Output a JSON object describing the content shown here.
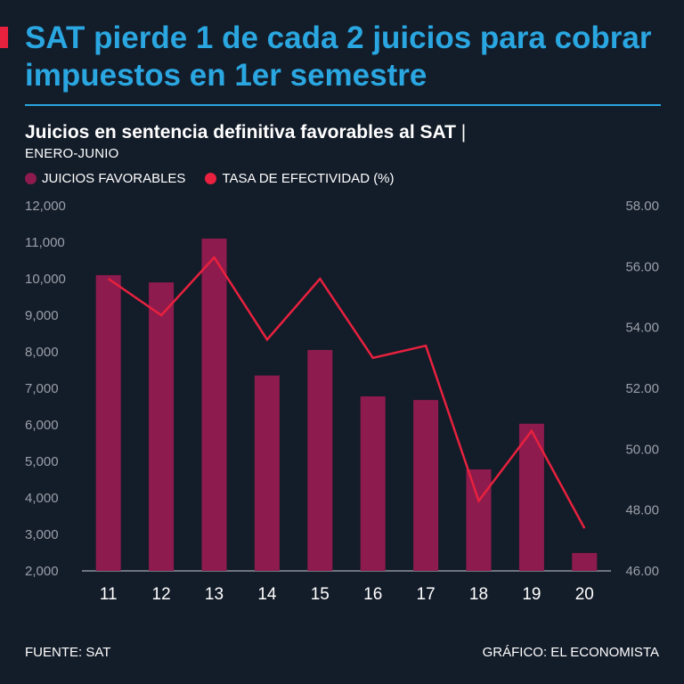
{
  "header": {
    "headline": "SAT pierde 1 de cada 2 juicios para cobrar impuestos en 1er semestre",
    "chart_title": "Juicios en sentencia definitiva favorables al SAT",
    "chart_title_separator": "|",
    "chart_subtitle": "ENERO-JUNIO"
  },
  "legend": {
    "bars_label": "JUICIOS FAVORABLES",
    "line_label": "TASA DE EFECTIVIDAD (%)"
  },
  "footer": {
    "source": "FUENTE: SAT",
    "credit": "GRÁFICO: EL ECONOMISTA"
  },
  "colors": {
    "background": "#131c29",
    "headline": "#2aa6e0",
    "accent": "#e8213e",
    "bars": "#8e1b4d",
    "line": "#e8213e",
    "tick": "#9aa0a8"
  },
  "chart_data": {
    "type": "bar",
    "categories": [
      "11",
      "12",
      "13",
      "14",
      "15",
      "16",
      "17",
      "18",
      "19",
      "20"
    ],
    "series": [
      {
        "name": "JUICIOS FAVORABLES",
        "type": "bar",
        "axis": "left",
        "values": [
          10100,
          9900,
          11100,
          7350,
          8050,
          6780,
          6680,
          4780,
          6030,
          2490
        ]
      },
      {
        "name": "TASA DE EFECTIVIDAD (%)",
        "type": "line",
        "axis": "right",
        "values": [
          55.6,
          54.4,
          56.3,
          53.6,
          55.6,
          53.0,
          53.4,
          48.3,
          50.6,
          47.4
        ]
      }
    ],
    "left_axis": {
      "min": 2000,
      "max": 12000,
      "ticks": [
        "2,000",
        "3,000",
        "4,000",
        "5,000",
        "6,000",
        "7,000",
        "8,000",
        "9,000",
        "10,000",
        "11,000",
        "12,000"
      ]
    },
    "right_axis": {
      "min": 46,
      "max": 58,
      "ticks": [
        "46.00",
        "48.00",
        "50.00",
        "52.00",
        "54.00",
        "56.00",
        "58.00"
      ]
    },
    "grid": false,
    "legend_position": "top-left"
  }
}
